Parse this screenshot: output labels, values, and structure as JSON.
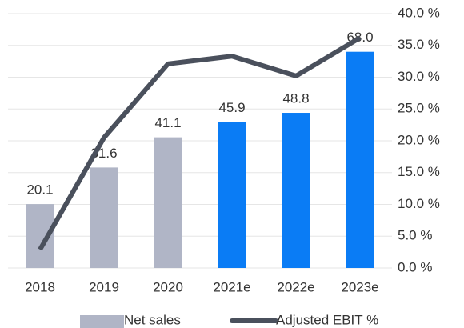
{
  "chart_data": {
    "type": "bar_line",
    "categories": [
      "2018",
      "2019",
      "2020",
      "2021e",
      "2022e",
      "2023e"
    ],
    "series": [
      {
        "name": "Net sales",
        "type": "bar",
        "color": "#b0b5c6",
        "colors": [
          "#b0b5c6",
          "#b0b5c6",
          "#b0b5c6",
          "#0a7cf5",
          "#0a7cf5",
          "#0a7cf5"
        ],
        "values": [
          20.1,
          31.6,
          41.1,
          45.9,
          48.8,
          68.0
        ],
        "value_labels": [
          "20.1",
          "31.6",
          "41.1",
          "45.9",
          "48.8",
          "68.0"
        ]
      },
      {
        "name": "Adjusted EBIT %",
        "type": "line",
        "color": "#4a505c",
        "axis": "y2",
        "values": [
          2.9,
          20.5,
          32.1,
          33.3,
          30.2,
          36.2
        ]
      }
    ],
    "ylim": [
      0,
      80
    ],
    "y2lim": [
      0,
      40
    ],
    "y2ticks": [
      {
        "value": 0,
        "label": "0.0 %"
      },
      {
        "value": 5,
        "label": "5.0 %"
      },
      {
        "value": 10,
        "label": "10.0 %"
      },
      {
        "value": 15,
        "label": "15.0 %"
      },
      {
        "value": 20,
        "label": "20.0 %"
      },
      {
        "value": 25,
        "label": "25.0 %"
      },
      {
        "value": 30,
        "label": "30.0 %"
      },
      {
        "value": 35,
        "label": "35.0 %"
      },
      {
        "value": 40,
        "label": "40.0 %"
      }
    ],
    "grid": true,
    "legend": "bottom"
  }
}
